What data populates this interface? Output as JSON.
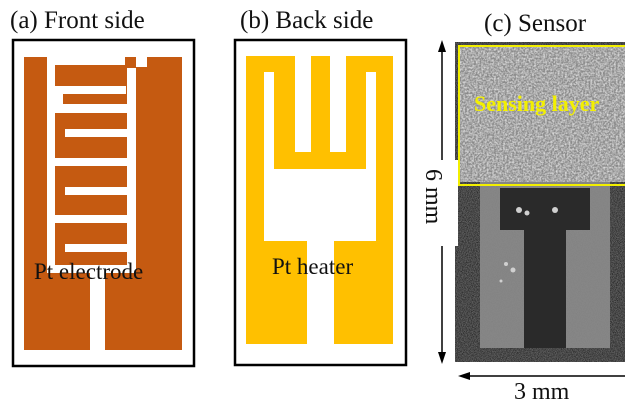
{
  "panels": {
    "front": {
      "title": "(a) Front side",
      "label": "Pt electrode"
    },
    "back": {
      "title": "(b) Back side",
      "label": "Pt heater"
    },
    "sensor": {
      "title": "(c) Sensor",
      "layer_label": "Sensing layer"
    }
  },
  "dimensions": {
    "height": "6 mm",
    "width": "3 mm"
  },
  "colors": {
    "electrode": "#c55a11",
    "heater": "#ffc000",
    "highlight": "#f2ef00",
    "frame": "#000000"
  }
}
